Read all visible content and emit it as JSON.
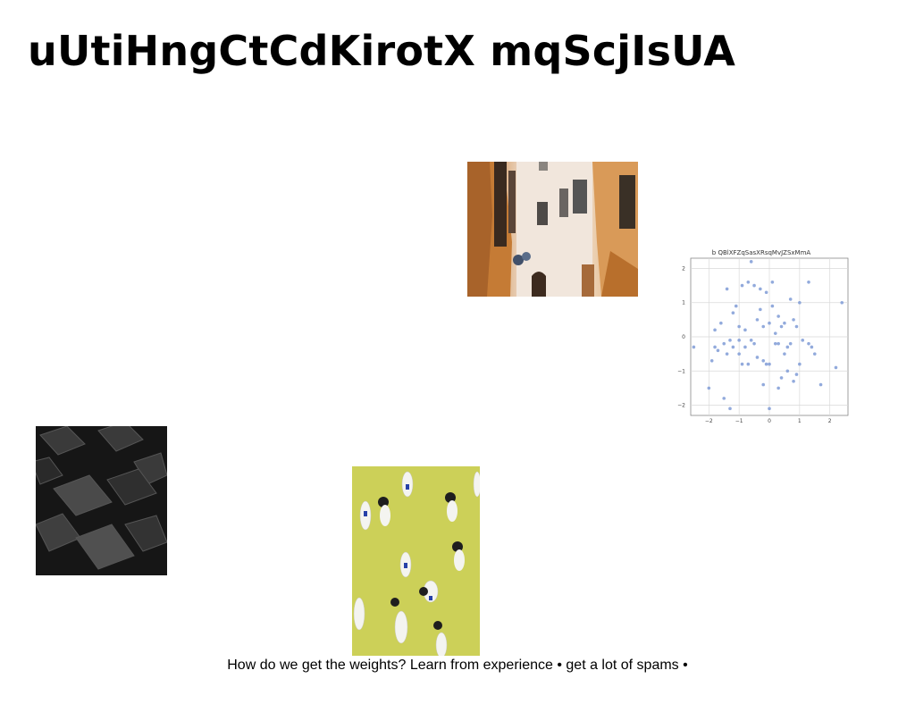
{
  "slide": {
    "title": "uUtiHngCtCdKirotX mqScjIsUA",
    "caption": "How do we get the weights? Learn from experience • get a lot of spams •"
  },
  "images": [
    {
      "name": "street-photo",
      "depicts": "narrow alley with beige buildings and orange walls"
    },
    {
      "name": "cubes-image",
      "depicts": "dark abstract 3D cubes"
    },
    {
      "name": "chess-pieces-image",
      "depicts": "white and black pawn figurines on yellow-green background"
    }
  ],
  "chart_data": {
    "type": "scatter",
    "title": "b QBlXFZqSasXRsqMvJZSxMmA",
    "xlabel": "",
    "ylabel": "",
    "xlim": [
      -2.6,
      2.6
    ],
    "ylim": [
      -2.3,
      2.3
    ],
    "xticks": [
      -2,
      -1,
      0,
      1,
      2
    ],
    "yticks": [
      2,
      1,
      0,
      -1,
      -2
    ],
    "grid": true,
    "point_color": "#7f9bd6",
    "x": [
      -2.5,
      -2.0,
      -1.9,
      -1.8,
      -1.8,
      -1.7,
      -1.6,
      -1.5,
      -1.5,
      -1.4,
      -1.4,
      -1.3,
      -1.3,
      -1.2,
      -1.2,
      -1.1,
      -1.0,
      -1.0,
      -0.9,
      -0.9,
      -0.8,
      -0.8,
      -0.7,
      -0.7,
      -0.6,
      -0.5,
      -0.5,
      -0.4,
      -0.4,
      -0.3,
      -0.3,
      -0.2,
      -0.2,
      -0.2,
      -0.1,
      -0.1,
      0.0,
      0.0,
      0.0,
      0.1,
      0.1,
      0.2,
      0.2,
      0.3,
      0.3,
      0.4,
      0.4,
      0.5,
      0.5,
      0.6,
      0.6,
      0.7,
      0.7,
      0.8,
      0.8,
      0.9,
      0.9,
      1.0,
      1.0,
      1.1,
      1.3,
      1.3,
      1.4,
      1.5,
      1.7,
      2.2,
      2.4,
      -0.6,
      0.3,
      -1.0
    ],
    "y": [
      -0.3,
      -1.5,
      -0.7,
      -0.3,
      0.2,
      -0.4,
      0.4,
      -0.2,
      -1.8,
      -0.5,
      1.4,
      -0.1,
      -2.1,
      0.7,
      -0.3,
      0.9,
      -0.5,
      0.3,
      -0.8,
      1.5,
      -0.3,
      0.2,
      -0.8,
      1.6,
      2.2,
      -0.2,
      1.5,
      0.5,
      -0.6,
      0.8,
      1.4,
      -1.4,
      0.3,
      -0.7,
      -0.8,
      1.3,
      -2.1,
      0.4,
      -0.8,
      0.9,
      1.6,
      -0.2,
      0.1,
      0.6,
      -1.5,
      -1.2,
      0.3,
      -0.5,
      0.4,
      -1.0,
      -0.3,
      1.1,
      -0.2,
      -1.3,
      0.5,
      -1.1,
      0.3,
      -0.8,
      1.0,
      -0.1,
      1.6,
      -0.2,
      -0.3,
      -0.5,
      -1.4,
      -0.9,
      1.0,
      -0.1,
      -0.2,
      -0.1
    ]
  }
}
